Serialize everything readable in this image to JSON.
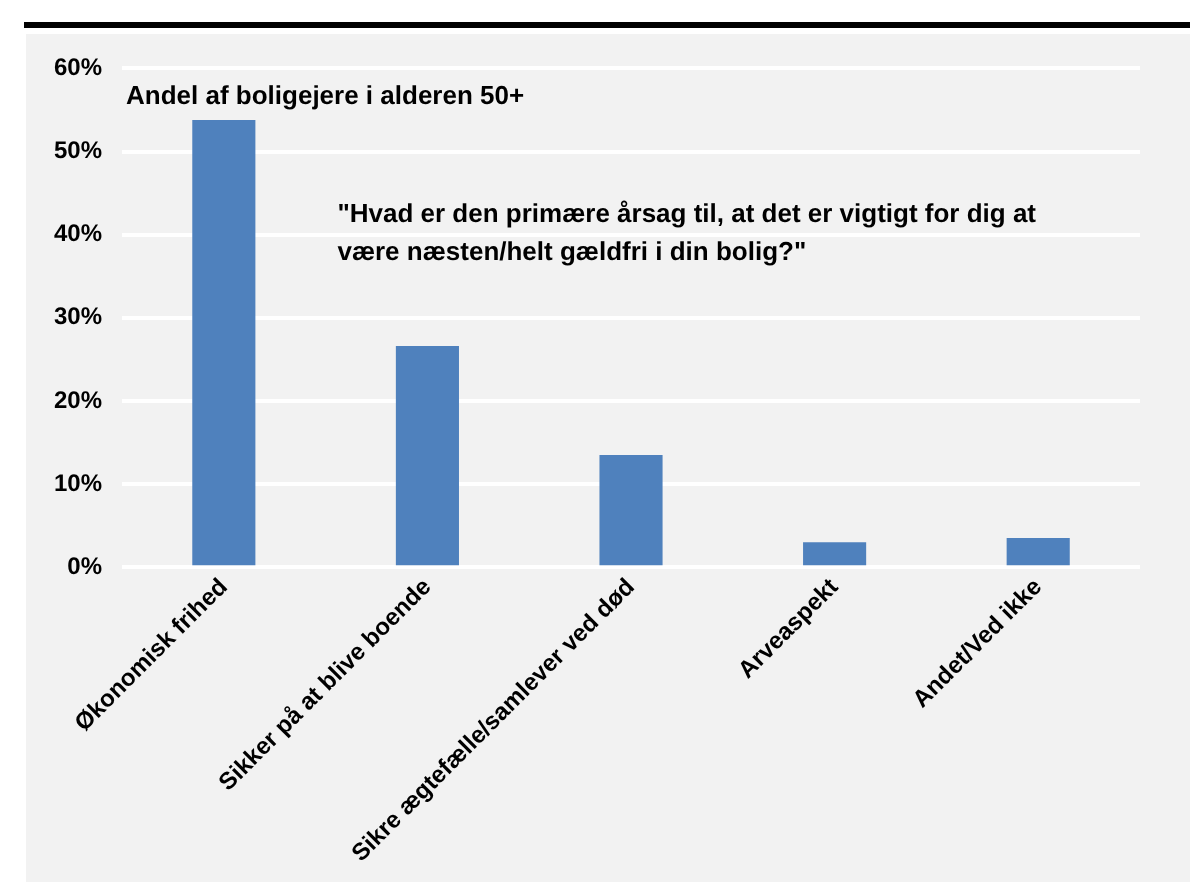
{
  "chart_data": {
    "type": "bar",
    "title": "Andel af boligejere i alderen 50+",
    "subtitle": "\"Hvad er den primære årsag til, at det er vigtigt for dig at være næsten/helt gældfri i din bolig?\"",
    "categories": [
      "Økonomisk frihed",
      "Sikker på at blive boende",
      "Sikre ægtefælle/samlever ved død",
      "Arveaspekt",
      "Andet/Ved ikke"
    ],
    "values": [
      53.8,
      26.6,
      13.5,
      3.0,
      3.5
    ],
    "color": "#4f81bd",
    "ylim": [
      0,
      60
    ],
    "yticks": [
      {
        "value": 0,
        "label": "0%"
      },
      {
        "value": 10,
        "label": "10%"
      },
      {
        "value": 20,
        "label": "20%"
      },
      {
        "value": 30,
        "label": "30%"
      },
      {
        "value": 40,
        "label": "40%"
      },
      {
        "value": 50,
        "label": "50%"
      },
      {
        "value": 60,
        "label": "60%"
      }
    ],
    "grid": "y",
    "legend": false
  }
}
